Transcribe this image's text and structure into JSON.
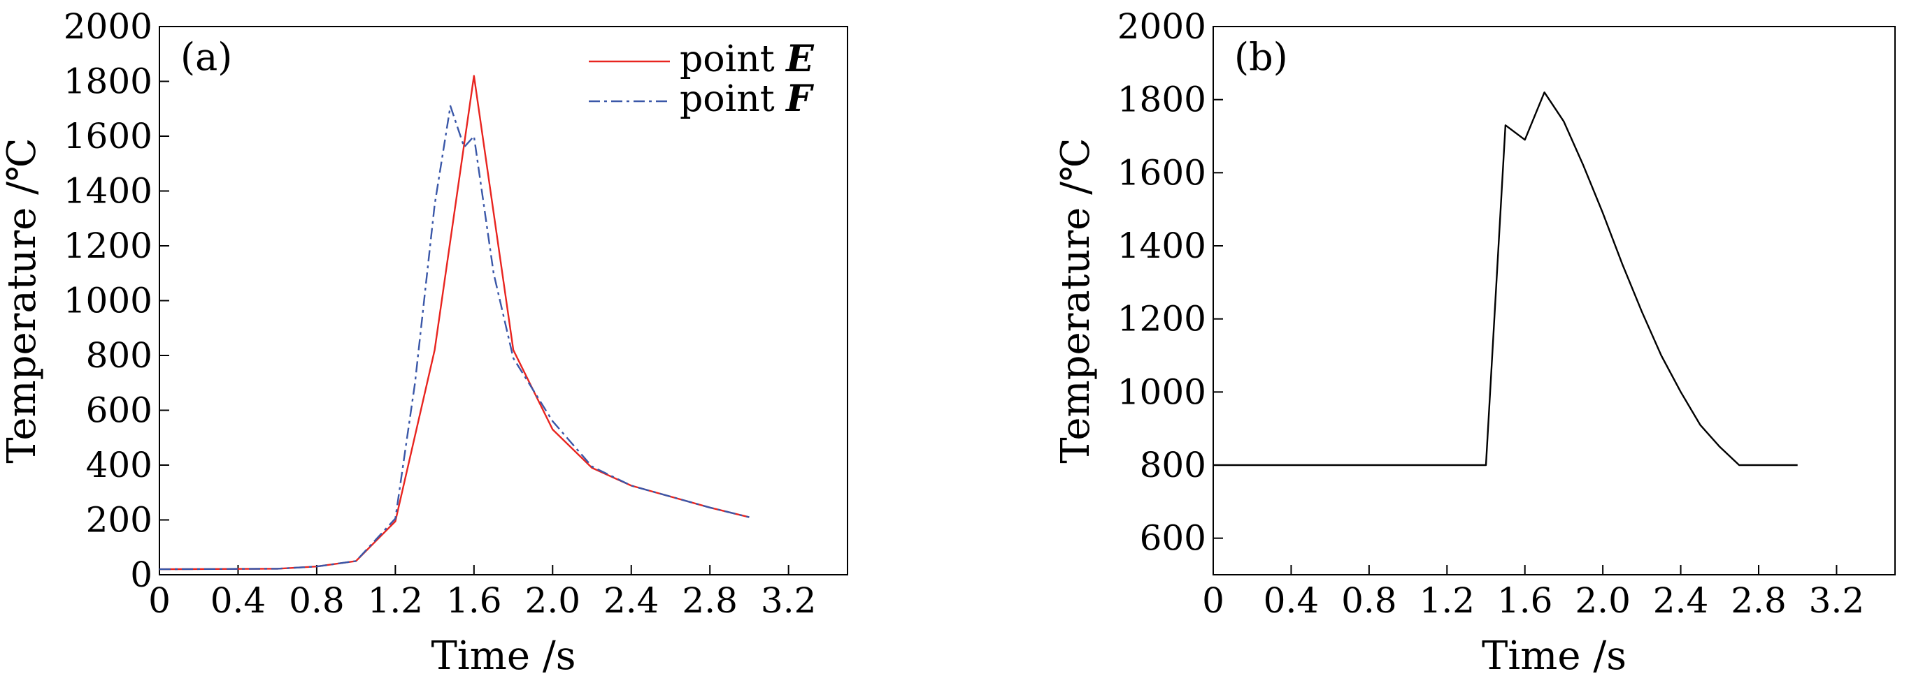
{
  "chart_data": [
    {
      "type": "line",
      "panel_label": "(a)",
      "xlabel": "Time /s",
      "ylabel": "Temperature /℃",
      "xlim": [
        0,
        3.5
      ],
      "ylim": [
        0,
        2000
      ],
      "xticks": [
        0,
        0.4,
        0.8,
        1.2,
        1.6,
        2.0,
        2.4,
        2.8,
        3.2
      ],
      "xtick_labels": [
        "0",
        "0.4",
        "0.8",
        "1.2",
        "1.6",
        "2.0",
        "2.4",
        "2.8",
        "3.2"
      ],
      "yticks": [
        0,
        200,
        400,
        600,
        800,
        1000,
        1200,
        1400,
        1600,
        1800,
        2000
      ],
      "ytick_labels": [
        "0",
        "200",
        "400",
        "600",
        "800",
        "1000",
        "1200",
        "1400",
        "1600",
        "1800",
        "2000"
      ],
      "grid": false,
      "legend_position": "top-right",
      "series": [
        {
          "name": "point E",
          "legend_prefix": "point ",
          "legend_var": "E",
          "color": "#e8241f",
          "dash": "solid",
          "x": [
            0,
            0.6,
            0.8,
            1.0,
            1.2,
            1.4,
            1.6,
            1.8,
            2.0,
            2.2,
            2.4,
            2.6,
            2.8,
            3.0
          ],
          "y": [
            20,
            22,
            30,
            50,
            195,
            820,
            1820,
            820,
            530,
            390,
            325,
            285,
            245,
            210
          ]
        },
        {
          "name": "point F",
          "legend_prefix": "point ",
          "legend_var": "F",
          "color": "#3a57a8",
          "dash": "dashdot",
          "x": [
            0,
            0.6,
            0.8,
            1.0,
            1.2,
            1.3,
            1.4,
            1.48,
            1.55,
            1.6,
            1.7,
            1.8,
            2.0,
            2.2,
            2.4,
            2.6,
            2.8,
            3.0
          ],
          "y": [
            20,
            22,
            30,
            50,
            205,
            700,
            1350,
            1710,
            1560,
            1600,
            1100,
            790,
            560,
            395,
            325,
            285,
            245,
            210
          ]
        }
      ]
    },
    {
      "type": "line",
      "panel_label": "(b)",
      "xlabel": "Time /s",
      "ylabel": "Temperature /℃",
      "xlim": [
        0,
        3.5
      ],
      "ylim": [
        500,
        2000
      ],
      "xticks": [
        0,
        0.4,
        0.8,
        1.2,
        1.6,
        2.0,
        2.4,
        2.8,
        3.2
      ],
      "xtick_labels": [
        "0",
        "0.4",
        "0.8",
        "1.2",
        "1.6",
        "2.0",
        "2.4",
        "2.8",
        "3.2"
      ],
      "yticks": [
        600,
        800,
        1000,
        1200,
        1400,
        1600,
        1800,
        2000
      ],
      "ytick_labels": [
        "600",
        "800",
        "1000",
        "1200",
        "1400",
        "1600",
        "1800",
        "2000"
      ],
      "grid": false,
      "series": [
        {
          "color": "#000000",
          "dash": "solid",
          "x": [
            0,
            1.4,
            1.5,
            1.6,
            1.7,
            1.8,
            1.9,
            2.0,
            2.1,
            2.2,
            2.3,
            2.4,
            2.5,
            2.6,
            2.7,
            3.0
          ],
          "y": [
            800,
            800,
            1730,
            1690,
            1820,
            1740,
            1620,
            1490,
            1350,
            1220,
            1100,
            1000,
            910,
            850,
            800,
            800
          ]
        }
      ]
    }
  ]
}
